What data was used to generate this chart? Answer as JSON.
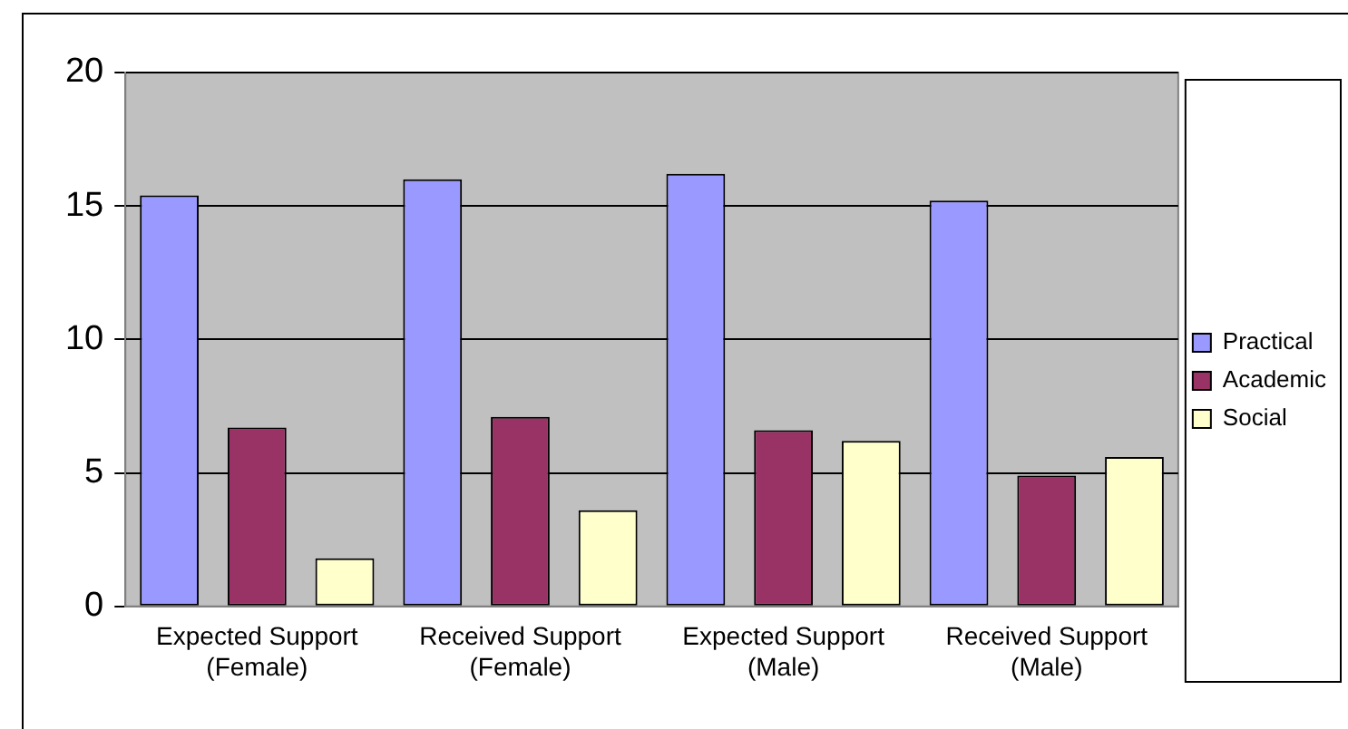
{
  "chart_data": {
    "type": "bar",
    "categories": [
      "Expected Support (Female)",
      "Received Support (Female)",
      "Expected Support (Male)",
      "Received Support (Male)"
    ],
    "series": [
      {
        "name": "Practical",
        "color": "#9999ff",
        "values": [
          15.4,
          16.0,
          16.2,
          15.2
        ]
      },
      {
        "name": "Academic",
        "color": "#993366",
        "values": [
          6.7,
          7.1,
          6.6,
          4.9
        ]
      },
      {
        "name": "Social",
        "color": "#ffffcc",
        "values": [
          1.8,
          3.6,
          6.2,
          5.6
        ]
      }
    ],
    "ylim": [
      0,
      20
    ],
    "yticks": [
      0,
      5,
      10,
      15,
      20
    ],
    "grid": "y",
    "legend": "right"
  }
}
